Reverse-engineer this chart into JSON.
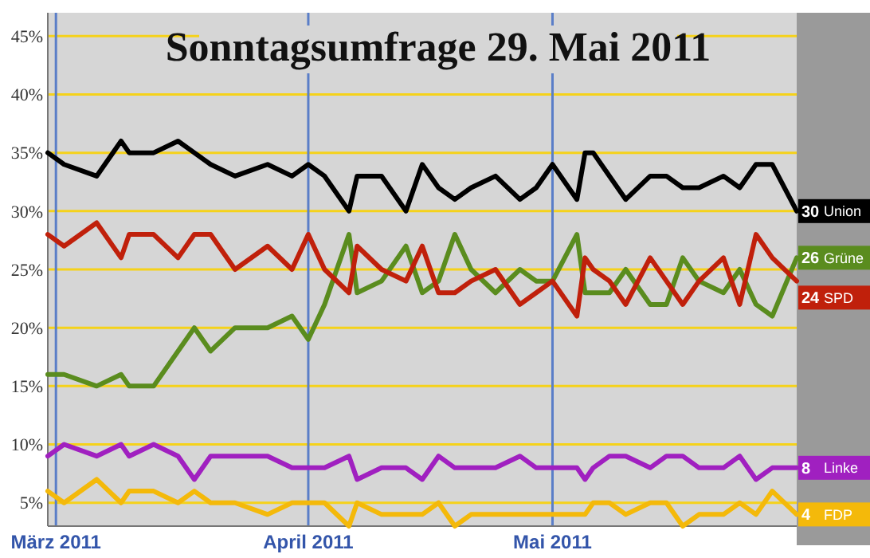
{
  "chart_data": {
    "type": "line",
    "title": "Sonntagsumfrage 29. Mai 2011",
    "x": [
      "2011-02-28",
      "2011-03-02",
      "2011-03-06",
      "2011-03-09",
      "2011-03-10",
      "2011-03-13",
      "2011-03-16",
      "2011-03-18",
      "2011-03-20",
      "2011-03-23",
      "2011-03-27",
      "2011-03-30",
      "2011-04-01",
      "2011-04-03",
      "2011-04-06",
      "2011-04-07",
      "2011-04-10",
      "2011-04-13",
      "2011-04-15",
      "2011-04-17",
      "2011-04-19",
      "2011-04-21",
      "2011-04-24",
      "2011-04-27",
      "2011-04-29",
      "2011-05-01",
      "2011-05-04",
      "2011-05-05",
      "2011-05-06",
      "2011-05-08",
      "2011-05-10",
      "2011-05-13",
      "2011-05-15",
      "2011-05-17",
      "2011-05-19",
      "2011-05-22",
      "2011-05-24",
      "2011-05-26",
      "2011-05-28",
      "2011-05-31"
    ],
    "series": [
      {
        "name": "Union",
        "color": "#000000",
        "values": [
          35,
          34,
          33,
          36,
          35,
          35,
          36,
          35,
          34,
          33,
          34,
          33,
          34,
          33,
          30,
          33,
          33,
          30,
          34,
          32,
          31,
          32,
          33,
          31,
          32,
          34,
          31,
          35,
          35,
          33,
          31,
          33,
          33,
          32,
          32,
          33,
          32,
          34,
          34,
          30
        ],
        "value_labels": [
          null,
          null,
          null,
          null,
          null,
          null,
          null,
          null,
          null,
          null,
          null,
          null,
          null,
          null,
          null,
          null,
          null,
          null,
          null,
          null,
          null,
          null,
          null,
          null,
          null,
          null,
          null,
          null,
          null,
          null,
          null,
          null,
          null,
          null,
          null,
          null,
          null,
          null,
          null,
          "30"
        ]
      },
      {
        "name": "Grüne",
        "color": "#5a8c1e",
        "values": [
          16,
          16,
          15,
          16,
          15,
          15,
          18,
          20,
          18,
          20,
          20,
          21,
          19,
          22,
          28,
          23,
          24,
          27,
          23,
          24,
          28,
          25,
          23,
          25,
          24,
          24,
          28,
          23,
          23,
          23,
          25,
          22,
          22,
          26,
          24,
          23,
          25,
          22,
          21,
          26
        ],
        "value_labels": [
          null,
          null,
          null,
          null,
          null,
          null,
          null,
          null,
          null,
          null,
          null,
          null,
          null,
          null,
          null,
          null,
          null,
          null,
          null,
          null,
          null,
          null,
          null,
          null,
          null,
          null,
          null,
          null,
          null,
          null,
          null,
          null,
          null,
          null,
          null,
          null,
          null,
          null,
          null,
          "26"
        ]
      },
      {
        "name": "SPD",
        "color": "#c0200b",
        "values": [
          28,
          27,
          29,
          26,
          28,
          28,
          26,
          28,
          28,
          25,
          27,
          25,
          28,
          25,
          23,
          27,
          25,
          24,
          27,
          23,
          23,
          24,
          25,
          22,
          23,
          24,
          21,
          26,
          25,
          24,
          22,
          26,
          24,
          22,
          24,
          26,
          22,
          28,
          26,
          24
        ],
        "value_labels": [
          null,
          null,
          null,
          null,
          null,
          null,
          null,
          null,
          null,
          null,
          null,
          null,
          null,
          null,
          null,
          null,
          null,
          null,
          null,
          null,
          null,
          null,
          null,
          null,
          null,
          null,
          null,
          null,
          null,
          null,
          null,
          null,
          null,
          null,
          null,
          null,
          null,
          null,
          null,
          "24"
        ]
      },
      {
        "name": "Linke",
        "color": "#a020c0",
        "values": [
          9,
          10,
          9,
          10,
          9,
          10,
          9,
          7,
          9,
          9,
          9,
          8,
          8,
          8,
          9,
          7,
          8,
          8,
          7,
          9,
          8,
          8,
          8,
          9,
          8,
          8,
          8,
          7,
          8,
          9,
          9,
          8,
          9,
          9,
          8,
          8,
          9,
          7,
          8,
          8
        ],
        "value_labels": [
          null,
          null,
          null,
          null,
          null,
          null,
          null,
          null,
          null,
          null,
          null,
          null,
          null,
          null,
          null,
          null,
          null,
          null,
          null,
          null,
          null,
          null,
          null,
          null,
          null,
          null,
          null,
          null,
          null,
          null,
          null,
          null,
          null,
          null,
          null,
          null,
          null,
          null,
          null,
          "8"
        ]
      },
      {
        "name": "FDP",
        "color": "#f4b90a",
        "values": [
          6,
          5,
          7,
          5,
          6,
          6,
          5,
          6,
          5,
          5,
          4,
          5,
          5,
          5,
          3,
          5,
          4,
          4,
          4,
          5,
          3,
          4,
          4,
          4,
          4,
          4,
          4,
          4,
          5,
          5,
          4,
          5,
          5,
          3,
          4,
          4,
          5,
          4,
          6,
          4
        ],
        "value_labels": [
          null,
          null,
          null,
          null,
          null,
          null,
          null,
          null,
          null,
          null,
          null,
          null,
          null,
          null,
          null,
          null,
          null,
          null,
          null,
          null,
          null,
          null,
          null,
          null,
          null,
          null,
          null,
          null,
          null,
          null,
          null,
          null,
          null,
          null,
          null,
          null,
          null,
          null,
          null,
          "4"
        ]
      }
    ],
    "xlim": [
      "2011-02-28",
      "2011-05-31"
    ],
    "xticks": [
      {
        "value": "2011-03-01",
        "label": "März 2011"
      },
      {
        "value": "2011-04-01",
        "label": "April 2011"
      },
      {
        "value": "2011-05-01",
        "label": "Mai 2011"
      }
    ],
    "ylim": [
      3,
      47
    ],
    "yticks": [
      {
        "value": 5,
        "label": "5%"
      },
      {
        "value": 10,
        "label": "10%"
      },
      {
        "value": 15,
        "label": "15%"
      },
      {
        "value": 20,
        "label": "20%"
      },
      {
        "value": 25,
        "label": "25%"
      },
      {
        "value": 30,
        "label": "30%"
      },
      {
        "value": 35,
        "label": "35%"
      },
      {
        "value": 40,
        "label": "40%"
      },
      {
        "value": 45,
        "label": "45%"
      }
    ],
    "grid": true,
    "legend": "right",
    "marker": "none",
    "line_style": "solid"
  }
}
